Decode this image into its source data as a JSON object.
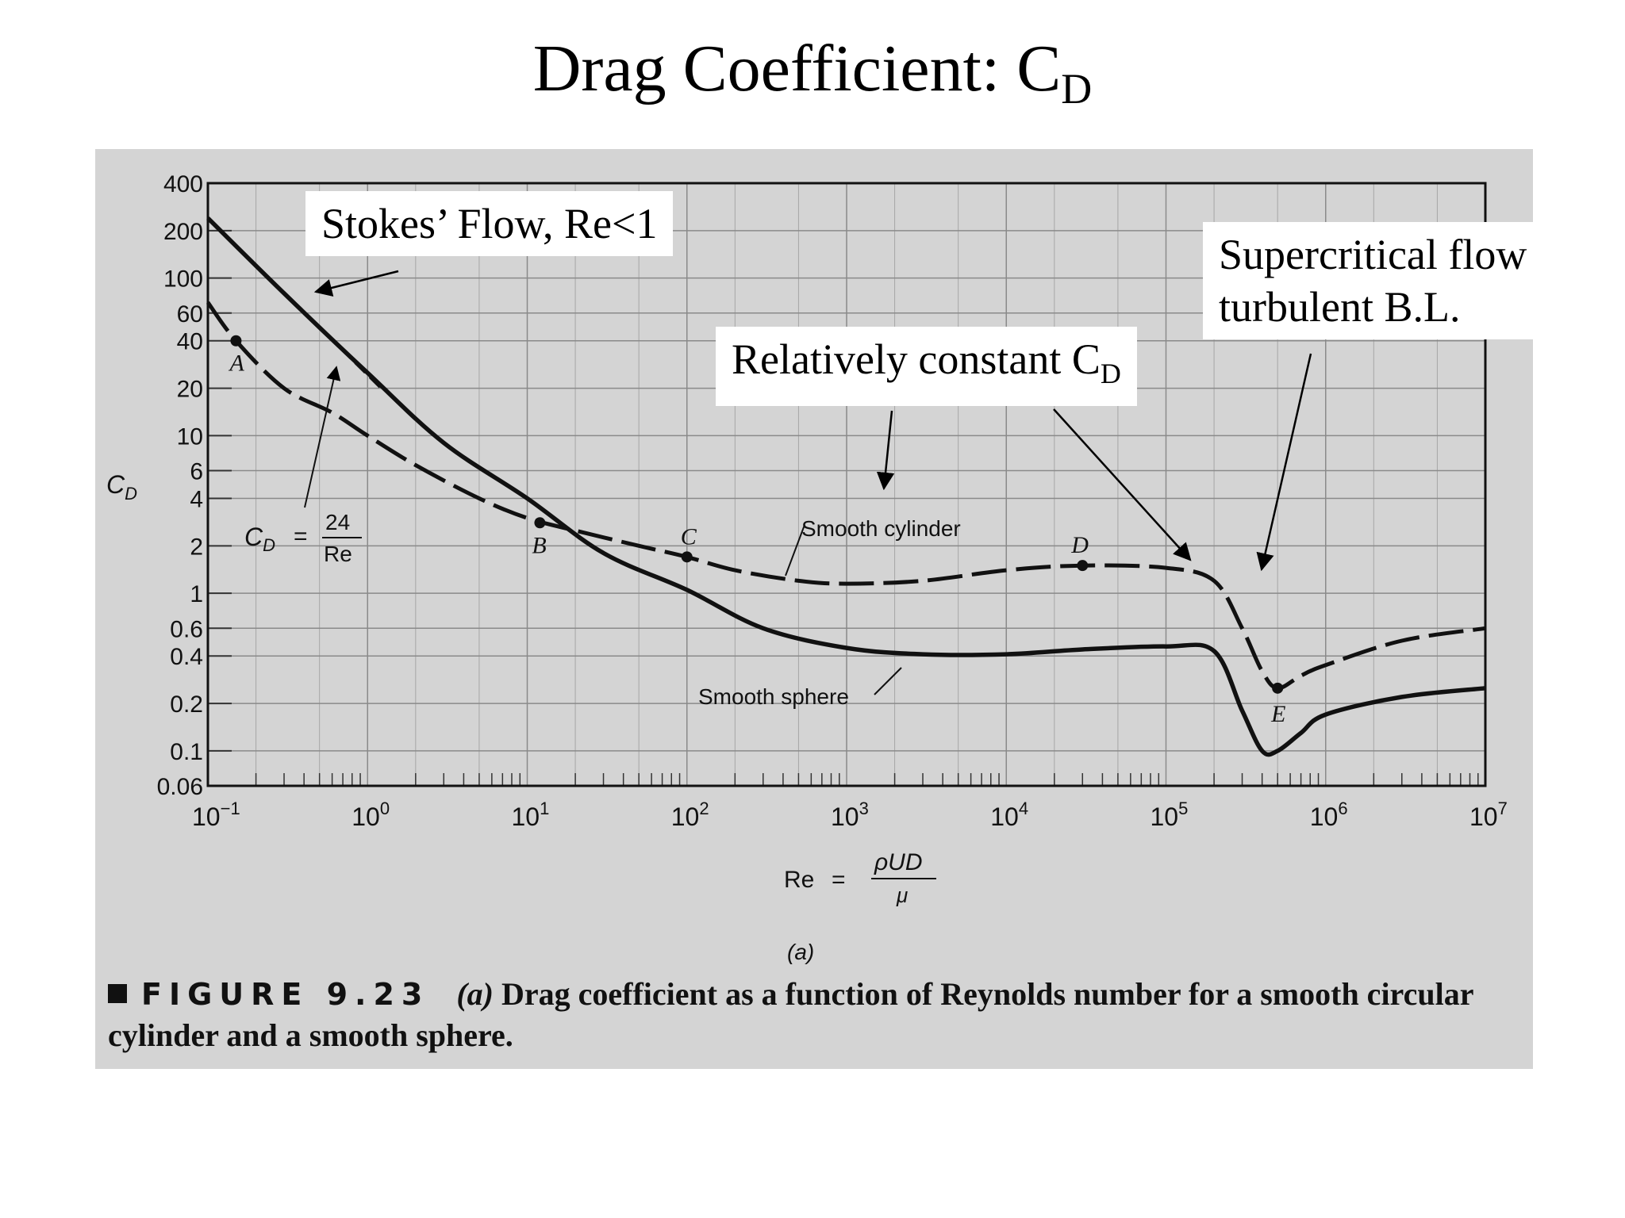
{
  "slide": {
    "title_main": "Drag Coefficient: C",
    "title_sub": "D"
  },
  "callouts": {
    "stokes": "Stokes’ Flow, Re<1",
    "constant_main": "Relatively constant C",
    "constant_sub": "D",
    "supercritical_line1": "Supercritical flow",
    "supercritical_line2": "turbulent B.L."
  },
  "caption": {
    "label": "FIGURE 9.23",
    "part": "(a)",
    "text": "Drag coefficient as a function of Reynolds number for a smooth circular cylinder and a smooth sphere."
  },
  "chart_data": {
    "type": "line",
    "x_scale": "log",
    "y_scale": "log",
    "xlim": [
      0.1,
      10000000
    ],
    "ylim": [
      0.06,
      400
    ],
    "ylabel_main": "C",
    "ylabel_sub": "D",
    "xlabel": {
      "lhs": "Re",
      "eq": "=",
      "num": "ρUD",
      "den": "μ"
    },
    "sublabel": "(a)",
    "x_ticks": [
      {
        "value": 0.1,
        "base": "10",
        "exp": "−1"
      },
      {
        "value": 1,
        "base": "10",
        "exp": "0"
      },
      {
        "value": 10,
        "base": "10",
        "exp": "1"
      },
      {
        "value": 100,
        "base": "10",
        "exp": "2"
      },
      {
        "value": 1000,
        "base": "10",
        "exp": "3"
      },
      {
        "value": 10000,
        "base": "10",
        "exp": "4"
      },
      {
        "value": 100000,
        "base": "10",
        "exp": "5"
      },
      {
        "value": 1000000,
        "base": "10",
        "exp": "6"
      },
      {
        "value": 10000000,
        "base": "10",
        "exp": "7"
      }
    ],
    "y_ticks": [
      {
        "value": 400,
        "label": "400"
      },
      {
        "value": 200,
        "label": "200"
      },
      {
        "value": 100,
        "label": "100"
      },
      {
        "value": 60,
        "label": "60"
      },
      {
        "value": 40,
        "label": "40"
      },
      {
        "value": 20,
        "label": "20"
      },
      {
        "value": 10,
        "label": "10"
      },
      {
        "value": 6,
        "label": "6"
      },
      {
        "value": 4,
        "label": "4"
      },
      {
        "value": 2,
        "label": "2"
      },
      {
        "value": 1,
        "label": "1"
      },
      {
        "value": 0.6,
        "label": "0.6"
      },
      {
        "value": 0.4,
        "label": "0.4"
      },
      {
        "value": 0.2,
        "label": "0.2"
      },
      {
        "value": 0.1,
        "label": "0.1"
      },
      {
        "value": 0.06,
        "label": "0.06"
      }
    ],
    "series": [
      {
        "name": "Smooth cylinder",
        "style": "dashed",
        "x": [
          0.1,
          0.15,
          0.3,
          0.6,
          1,
          2,
          5,
          10,
          20,
          50,
          100,
          200,
          500,
          1000,
          3000,
          10000,
          30000,
          100000,
          200000,
          300000,
          400000,
          500000,
          700000,
          1000000,
          3000000,
          10000000
        ],
        "y": [
          70,
          40,
          20,
          14,
          10,
          6.5,
          4,
          3,
          2.5,
          2,
          1.7,
          1.4,
          1.2,
          1.15,
          1.2,
          1.4,
          1.5,
          1.45,
          1.2,
          0.6,
          0.32,
          0.25,
          0.3,
          0.35,
          0.5,
          0.6
        ]
      },
      {
        "name": "Smooth sphere",
        "style": "solid",
        "x": [
          0.1,
          0.3,
          1,
          3,
          10,
          30,
          100,
          300,
          1000,
          3000,
          10000,
          30000,
          100000,
          200000,
          300000,
          400000,
          500000,
          700000,
          1000000,
          3000000,
          10000000
        ],
        "y": [
          240,
          80,
          25,
          9,
          4,
          1.8,
          1.05,
          0.6,
          0.45,
          0.41,
          0.41,
          0.44,
          0.46,
          0.43,
          0.18,
          0.1,
          0.1,
          0.13,
          0.17,
          0.22,
          0.25
        ]
      },
      {
        "name": "C_D = 24/Re",
        "style": "thin-dashed",
        "x": [
          0.1,
          1.2
        ],
        "y": [
          240,
          20
        ]
      }
    ],
    "points": [
      {
        "label": "A",
        "x": 0.15,
        "y": 40
      },
      {
        "label": "B",
        "x": 12,
        "y": 2.8
      },
      {
        "label": "C",
        "x": 100,
        "y": 1.7
      },
      {
        "label": "D",
        "x": 30000,
        "y": 1.5
      },
      {
        "label": "E",
        "x": 500000,
        "y": 0.25
      }
    ],
    "annotations": {
      "cylinder": "Smooth cylinder",
      "sphere": "Smooth sphere",
      "formula_lhs_main": "C",
      "formula_lhs_sub": "D",
      "formula_eq": "=",
      "formula_num": "24",
      "formula_den": "Re"
    },
    "grid": true
  }
}
